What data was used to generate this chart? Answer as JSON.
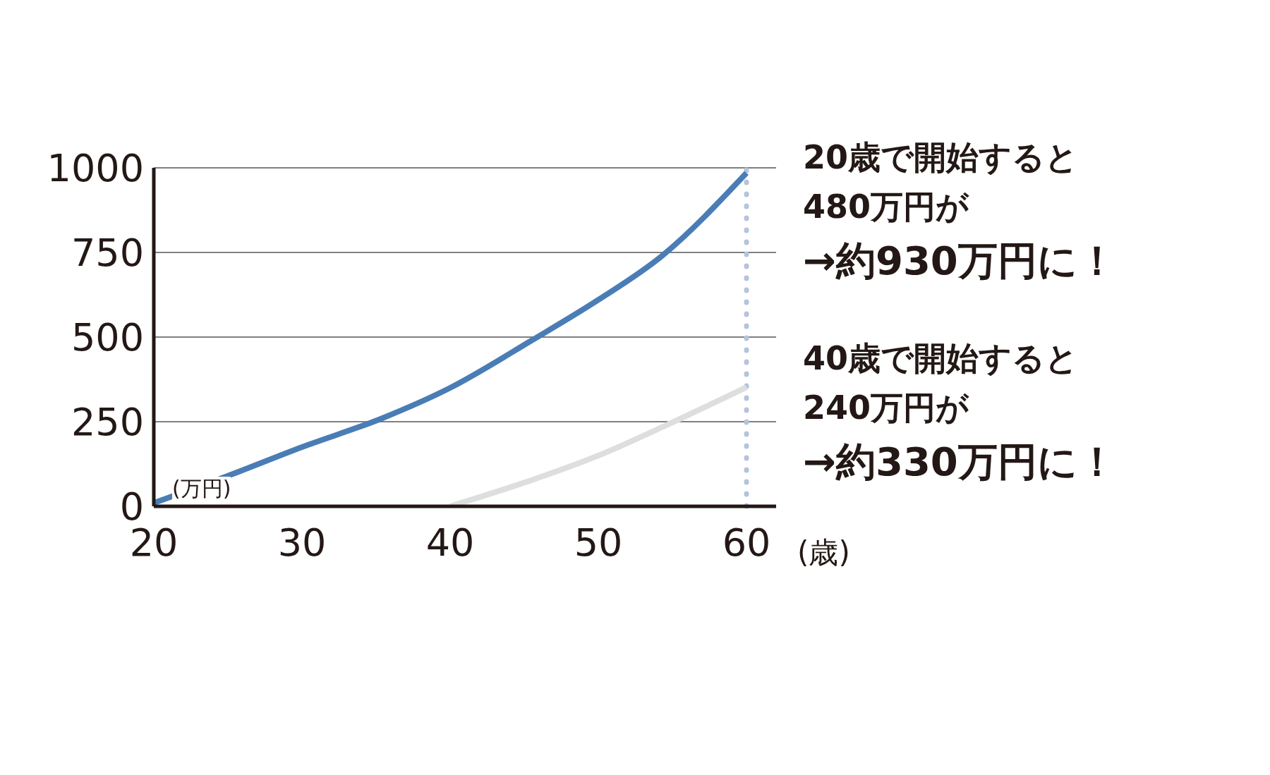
{
  "chart_data": {
    "type": "line",
    "xlabel": "(歳)",
    "ylabel": "(万円)",
    "xlim": [
      20,
      62
    ],
    "xticks": [
      20,
      30,
      40,
      50,
      60
    ],
    "ylim": [
      0,
      1000
    ],
    "yticks": [
      0,
      250,
      500,
      750,
      1000
    ],
    "grid": "y",
    "series": [
      {
        "color": "#4a7db5",
        "x": [
          20,
          25,
          30,
          35.4,
          40,
          45.5,
          50,
          54.3,
          60
        ],
        "values": [
          10,
          90,
          175,
          260,
          350,
          490,
          610,
          740,
          985
        ]
      },
      {
        "color": "#dedede",
        "x": [
          40,
          45,
          50,
          54.6,
          60
        ],
        "values": [
          0,
          70,
          150,
          240,
          352
        ]
      }
    ],
    "ref_lines": [
      {
        "axis": "x",
        "value": 60,
        "color": "#b4c4dc",
        "line_style": "dotted"
      }
    ],
    "annotations": [
      "20歳で開始すると\n480万円が\n→約930万円に！",
      "40歳で開始すると\n240万円が\n→約330万円に！"
    ]
  }
}
